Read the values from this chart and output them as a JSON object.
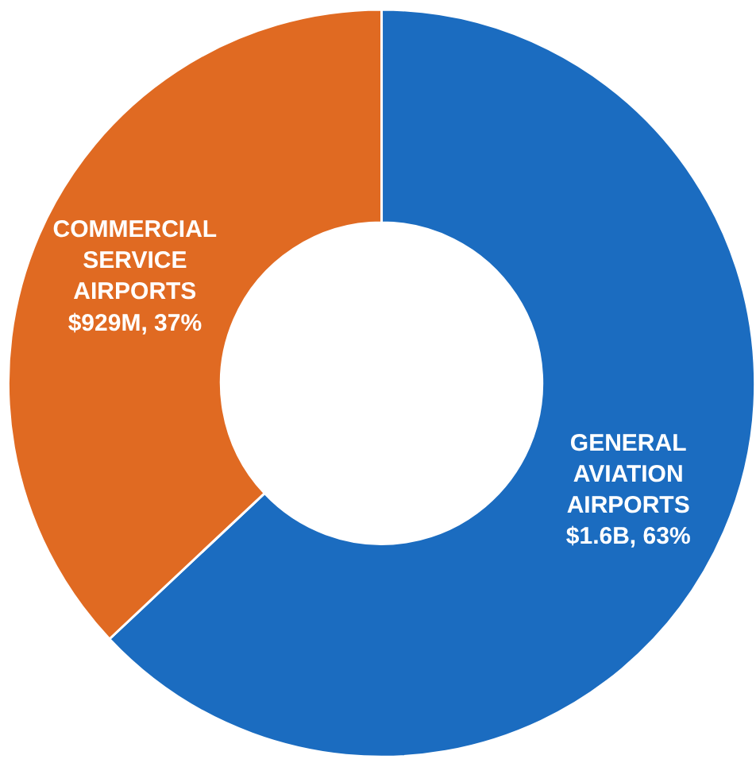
{
  "chart_data": {
    "type": "donut",
    "categories": [
      "GENERAL AVIATION AIRPORTS",
      "COMMERCIAL SERVICE AIRPORTS"
    ],
    "values": [
      63,
      37
    ],
    "value_labels": [
      "$1.6B, 63%",
      "$929M, 37%"
    ],
    "colors": [
      "#1b6cc0",
      "#e06a22"
    ]
  }
}
